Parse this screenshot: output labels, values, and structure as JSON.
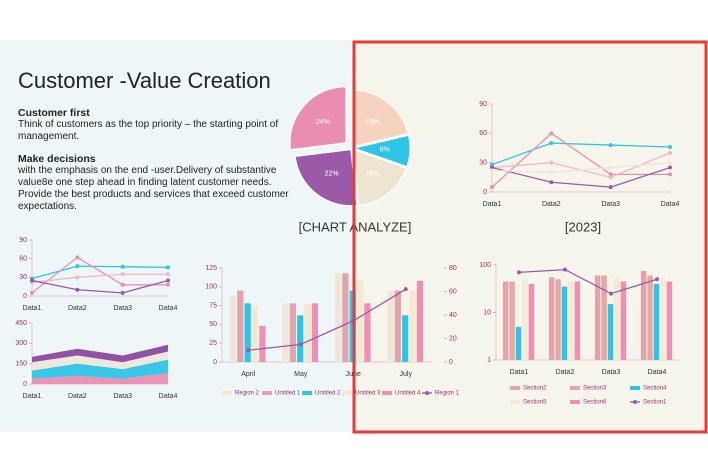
{
  "slide": {
    "title": "Customer -Value Creation",
    "sections": [
      {
        "heading": "Customer first",
        "text": "Think of customers as the top priority – the starting point of management."
      },
      {
        "heading": "Make decisions",
        "text": "with the emphasis on the end -user.Delivery of substantive value8e one step ahead in finding latent customer needs. Provide the best products and services that exceed customer expectations."
      }
    ],
    "captions": [
      "[CHART ANALYZE]",
      "[2023]"
    ]
  },
  "chart_data": [
    {
      "type": "pie",
      "values": [
        19,
        8,
        16,
        22,
        24
      ],
      "value_labels": [
        "19%",
        "8%",
        "16%",
        "22%",
        "24%"
      ],
      "colors": [
        "#f6d3c0",
        "#2ec4e6",
        "#ede5d0",
        "#9b5aa8",
        "#ea8db2"
      ]
    },
    {
      "type": "line",
      "categories": [
        "Data1",
        "Data2",
        "Data3",
        "Data4"
      ],
      "ylim": [
        0,
        90
      ],
      "yticks": [
        0,
        30,
        60,
        90
      ],
      "series": [
        {
          "color": "#2ec4e6",
          "values": [
            28,
            50,
            48,
            46
          ]
        },
        {
          "color": "#ea8db2",
          "values": [
            5,
            60,
            18,
            18
          ]
        },
        {
          "color": "#f2b6c6",
          "values": [
            25,
            30,
            15,
            40
          ]
        },
        {
          "color": "#9b5aa8",
          "values": [
            25,
            10,
            5,
            25
          ]
        },
        {
          "color": "#eee6cf",
          "values": [
            22,
            20,
            25,
            30
          ]
        }
      ]
    },
    {
      "type": "line",
      "categories": [
        "Data1",
        "Data2",
        "Data3",
        "Data4"
      ],
      "ylim": [
        0,
        90
      ],
      "yticks": [
        0,
        30,
        60,
        90
      ],
      "series": [
        {
          "color": "#2ec4e6",
          "values": [
            28,
            48,
            47,
            46
          ]
        },
        {
          "color": "#ea8db2",
          "values": [
            5,
            62,
            18,
            18
          ]
        },
        {
          "color": "#f2b6c6",
          "values": [
            22,
            30,
            35,
            35
          ]
        },
        {
          "color": "#9b5aa8",
          "values": [
            25,
            10,
            5,
            25
          ]
        }
      ]
    },
    {
      "type": "area",
      "categories": [
        "Data1",
        "Data2",
        "Data3",
        "Data4"
      ],
      "ylim": [
        0,
        450
      ],
      "yticks": [
        0,
        150,
        300,
        450
      ],
      "series": [
        {
          "color": "#ea8db2",
          "values": [
            40,
            60,
            40,
            80
          ]
        },
        {
          "color": "#2ec4e6",
          "values": [
            60,
            90,
            70,
            100
          ]
        },
        {
          "color": "#ece6da",
          "values": [
            60,
            60,
            50,
            60
          ]
        },
        {
          "color": "#8a4a9e",
          "values": [
            40,
            50,
            50,
            50
          ]
        }
      ]
    },
    {
      "type": "bar",
      "categories": [
        "April",
        "May",
        "June",
        "July"
      ],
      "ylim": [
        0,
        125
      ],
      "yticks": [
        0,
        25,
        50,
        75,
        100,
        125
      ],
      "y2lim": [
        0,
        80
      ],
      "y2ticks": [
        0,
        20,
        40,
        60,
        80
      ],
      "series": [
        {
          "name": "Region 2",
          "color": "#efe6d6",
          "values": [
            88,
            78,
            118,
            95
          ]
        },
        {
          "name": "Untitled 1",
          "color": "#e3a3ad",
          "values": [
            95,
            78,
            118,
            95
          ]
        },
        {
          "name": "Untitled 2",
          "color": "#2ec4e6",
          "values": [
            78,
            62,
            95,
            62
          ]
        },
        {
          "name": "Untitled 3",
          "color": "#f4e9cf",
          "values": [
            75,
            78,
            110,
            95
          ]
        },
        {
          "name": "Untitled 4",
          "color": "#ee8fb3",
          "values": [
            48,
            78,
            78,
            108
          ]
        },
        {
          "name": "Region 1",
          "color": "#9b5aa8",
          "type": "line",
          "axis": "y2",
          "values": [
            10,
            15,
            35,
            62
          ]
        }
      ]
    },
    {
      "type": "bar",
      "log_scale": true,
      "categories": [
        "Data1",
        "Data2",
        "Data3",
        "Data4"
      ],
      "ylim": [
        1,
        100
      ],
      "yticks": [
        1,
        10,
        100
      ],
      "series": [
        {
          "name": "Section2",
          "color": "#e3a3ad",
          "values": [
            45,
            55,
            60,
            75
          ]
        },
        {
          "name": "Section3",
          "color": "#e8a8a0",
          "values": [
            45,
            50,
            60,
            60
          ]
        },
        {
          "name": "Section4",
          "color": "#2ec4e6",
          "values": [
            5,
            35,
            15,
            40
          ]
        },
        {
          "name": "Section5",
          "color": "#f4ead6",
          "values": [
            50,
            45,
            55,
            55
          ]
        },
        {
          "name": "Section6",
          "color": "#ee8fb3",
          "values": [
            40,
            45,
            45,
            45
          ]
        },
        {
          "name": "Section1",
          "color": "#9b5aa8",
          "type": "line",
          "values": [
            70,
            80,
            25,
            50
          ]
        }
      ]
    }
  ]
}
